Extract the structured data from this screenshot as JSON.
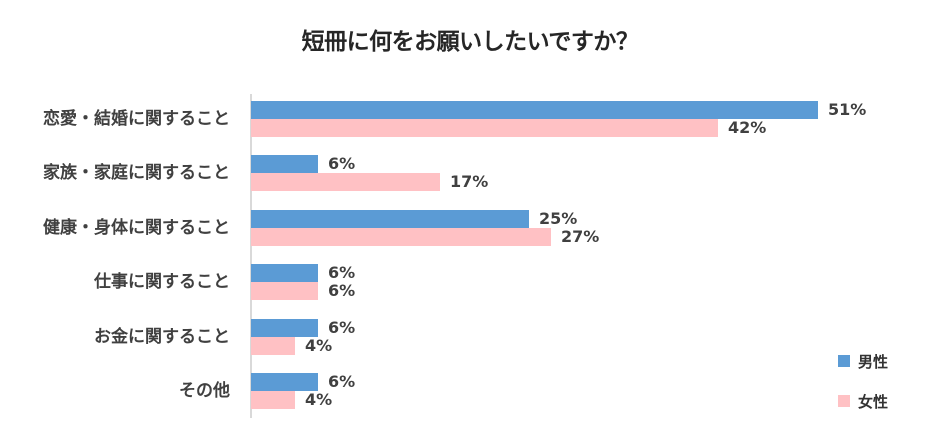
{
  "chart_data": {
    "type": "bar",
    "orientation": "horizontal",
    "title": "短冊に何をお願いしたいですか？",
    "categories": [
      "恋愛・結婚に関すること",
      "家族・家庭に関すること",
      "健康・身体に関すること",
      "仕事に関すること",
      "お金に関すること",
      "その他"
    ],
    "series": [
      {
        "name": "男性",
        "color": "#5b9bd5",
        "values": [
          51,
          6,
          25,
          6,
          6,
          6
        ]
      },
      {
        "name": "女性",
        "color": "#ffc1c4",
        "values": [
          42,
          17,
          27,
          6,
          4,
          4
        ]
      }
    ],
    "value_labels": {
      "male": [
        "51%",
        "6%",
        "25%",
        "6%",
        "6%",
        "6%"
      ],
      "female": [
        "42%",
        "17%",
        "27%",
        "6%",
        "4%",
        "4%"
      ]
    },
    "xlabel": "",
    "ylabel": "",
    "grid": false,
    "legend_position": "right-bottom",
    "unit": "%"
  },
  "title": "短冊に何をお願いしたいですか？",
  "legend": {
    "male": "男性",
    "female": "女性"
  }
}
